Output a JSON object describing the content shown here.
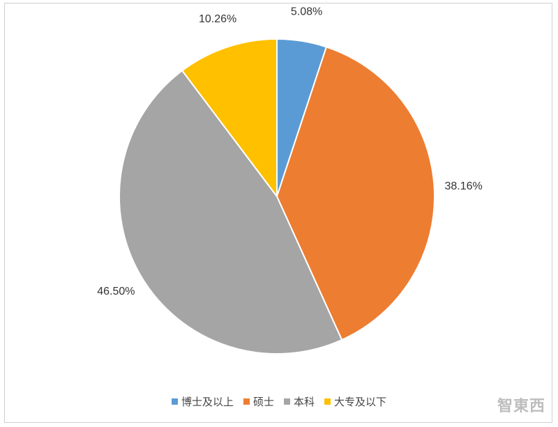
{
  "chart_data": {
    "type": "pie",
    "categories": [
      "博士及以上",
      "硕士",
      "本科",
      "大专及以下"
    ],
    "values": [
      5.08,
      38.16,
      46.5,
      10.26
    ],
    "data_labels": [
      "5.08%",
      "38.16%",
      "46.50%",
      "10.26%"
    ],
    "colors": [
      "#5B9BD5",
      "#ED7D31",
      "#A5A5A5",
      "#FFC000"
    ],
    "start_angle_deg": 0,
    "direction": "clockwise",
    "legend_position": "bottom",
    "title": ""
  },
  "watermark": "智東西"
}
